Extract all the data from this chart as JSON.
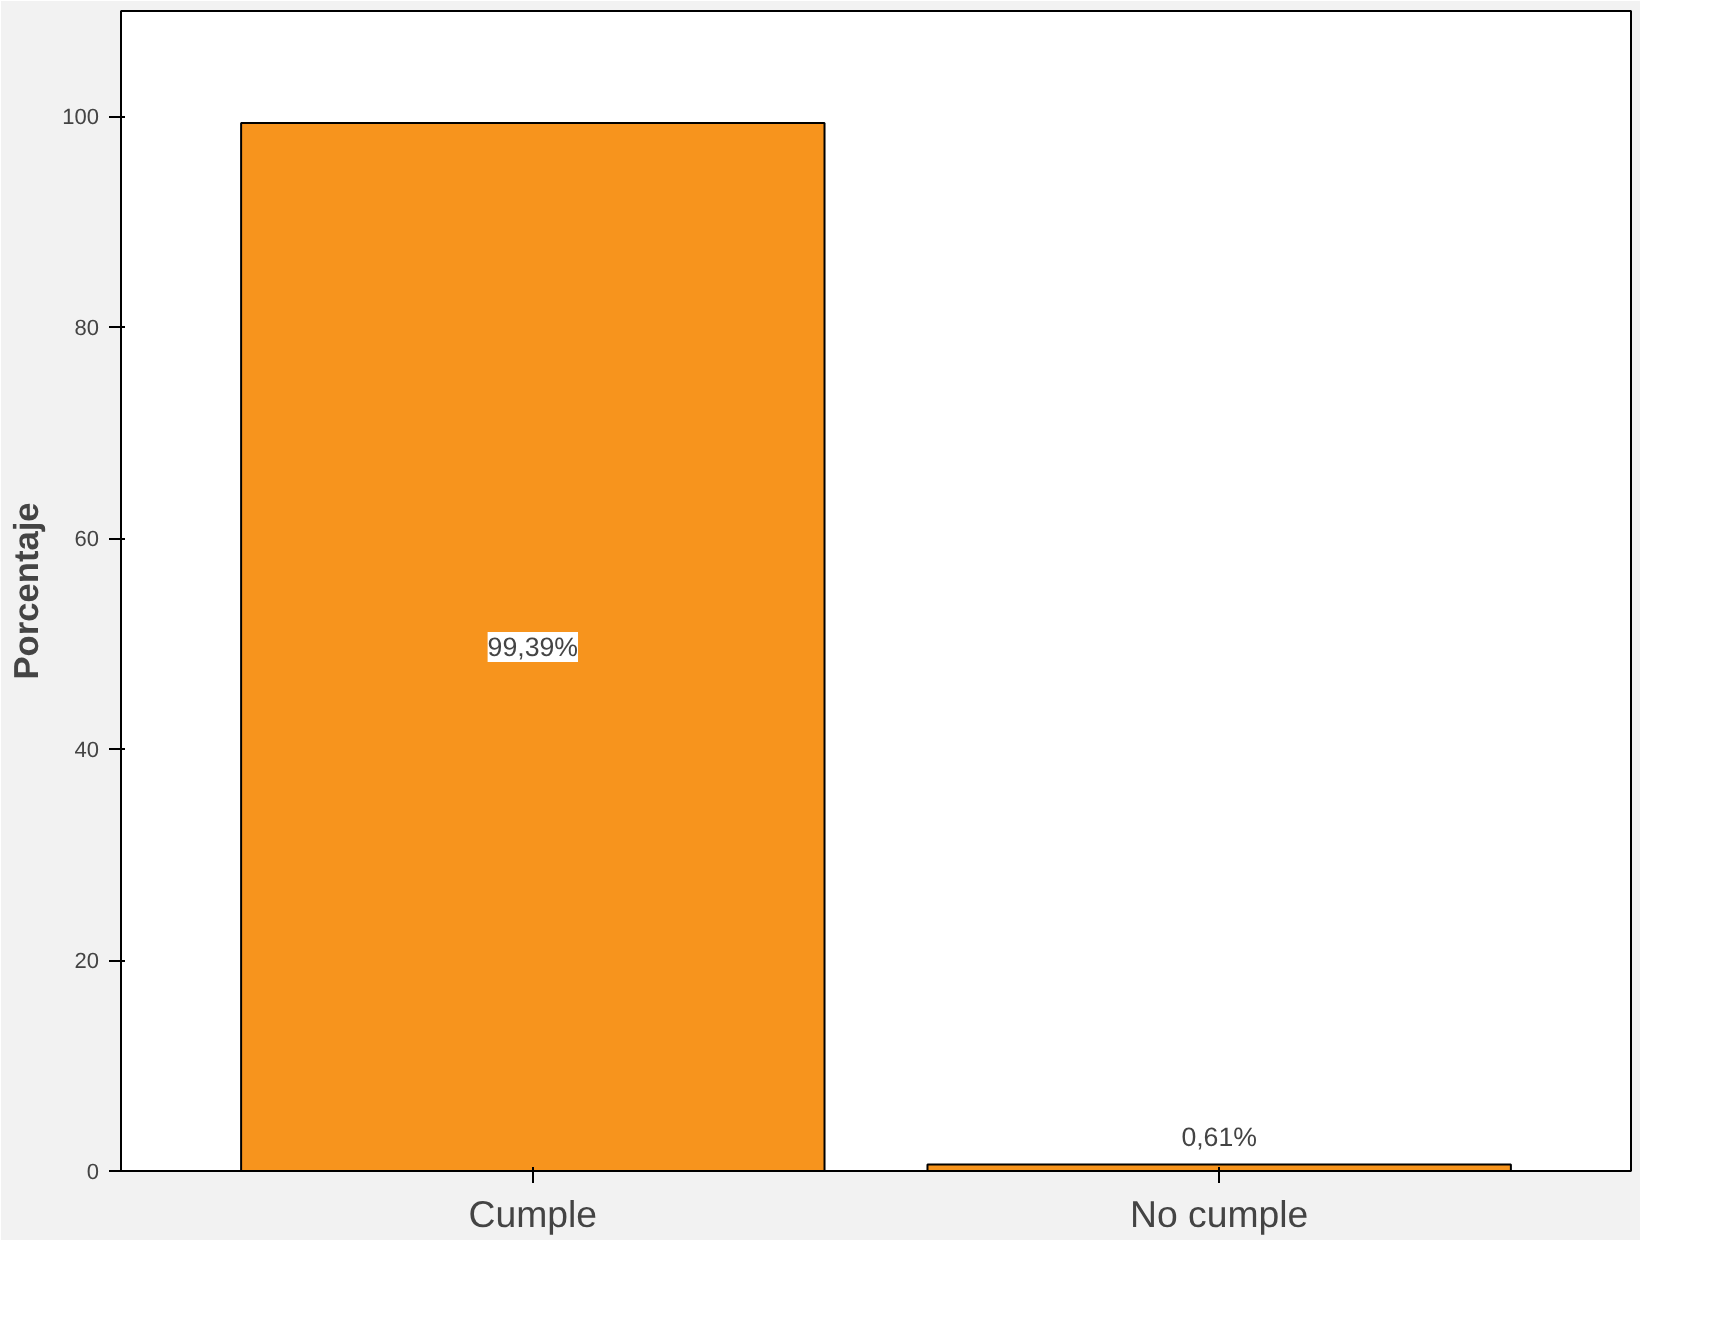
{
  "chart_data": {
    "type": "bar",
    "ylabel": "Porcentaje",
    "categories": [
      "Cumple",
      "No cumple"
    ],
    "values": [
      99.39,
      0.61
    ],
    "value_labels": [
      "99,39%",
      "0,61%"
    ],
    "color": "#f7941d",
    "ylim": [
      0,
      110
    ],
    "yticks": [
      0,
      20,
      40,
      60,
      80,
      100
    ],
    "grid": false
  }
}
